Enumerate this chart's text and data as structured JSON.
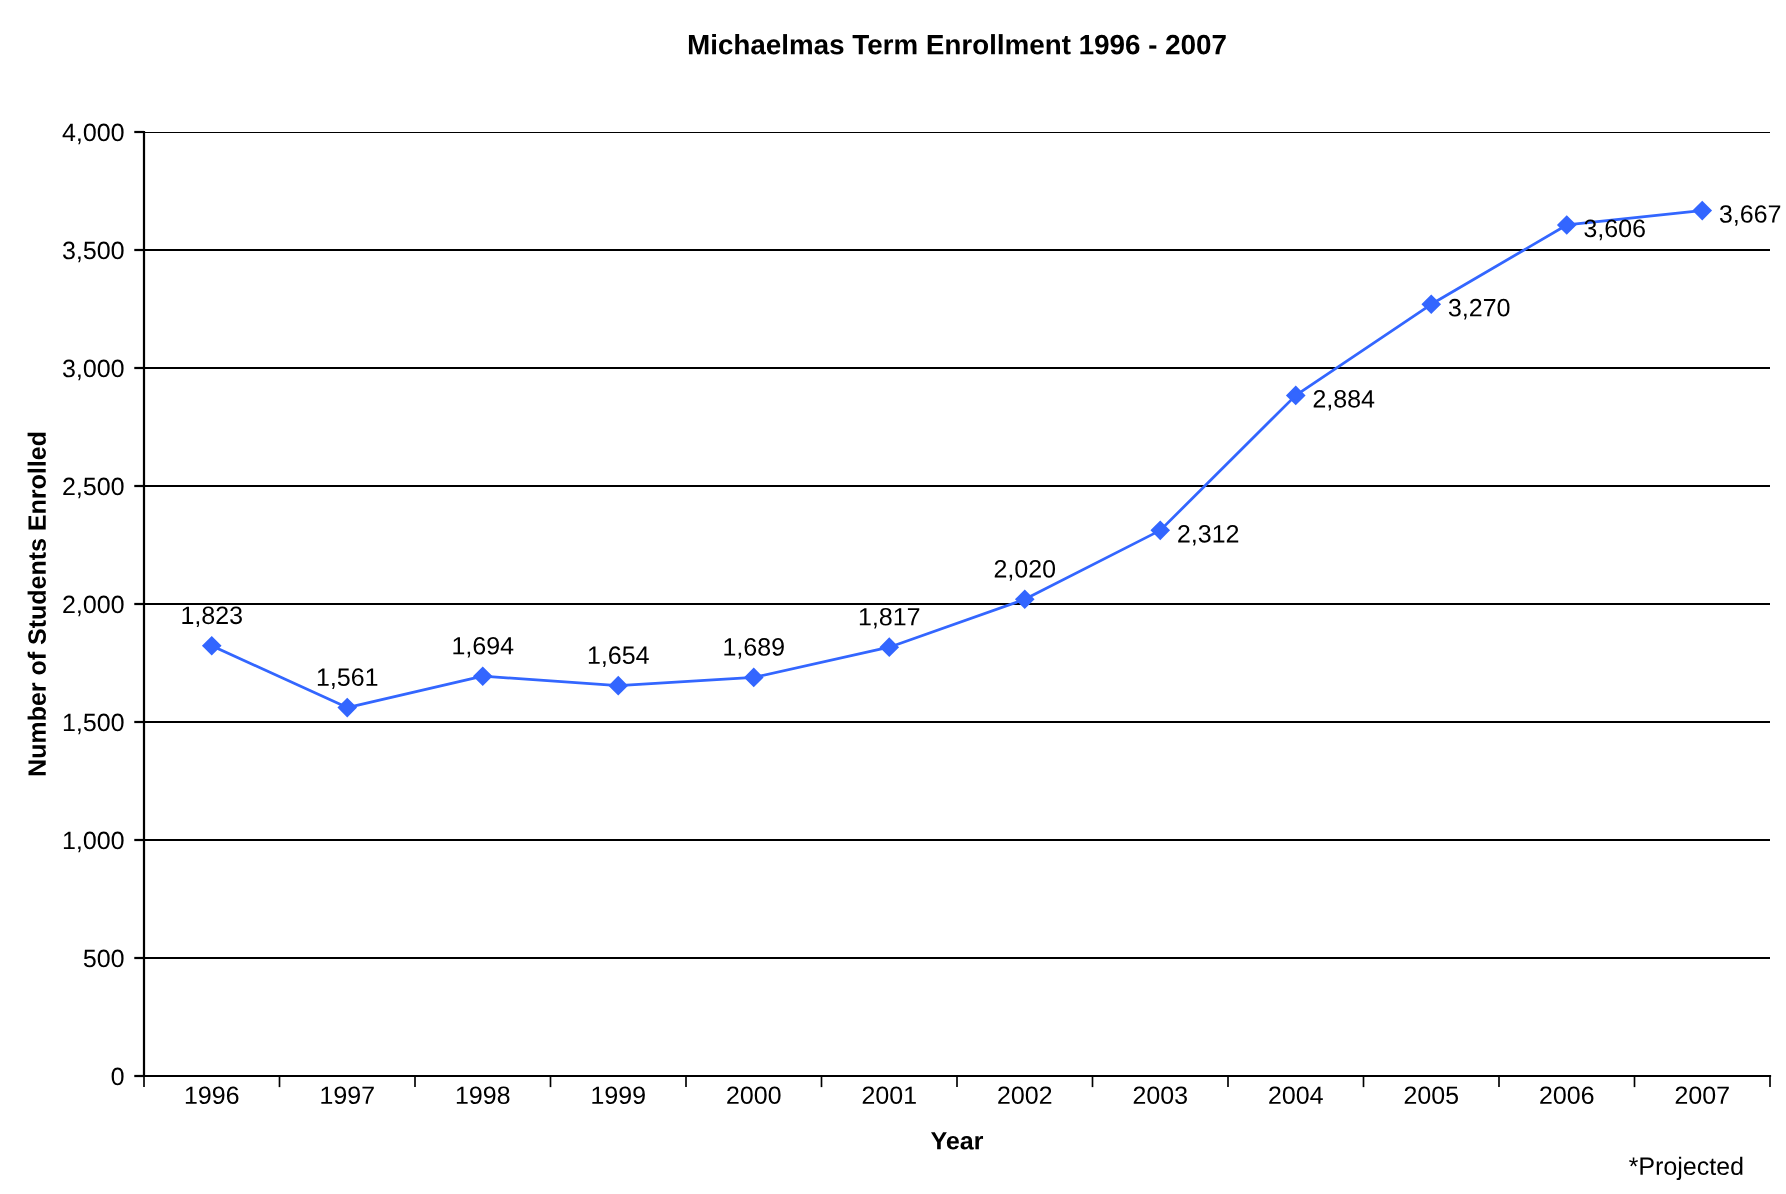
{
  "chart_data": {
    "type": "line",
    "title": "Michaelmas Term Enrollment 1996 - 2007",
    "xlabel": "Year",
    "ylabel": "Number of Students Enrolled",
    "categories": [
      "1996",
      "1997",
      "1998",
      "1999",
      "2000",
      "2001",
      "2002",
      "2003",
      "2004",
      "2005",
      "2006",
      "2007"
    ],
    "series": [
      {
        "color": "#3366ff",
        "values": [
          1823,
          1561,
          1694,
          1654,
          1689,
          1817,
          2020,
          2312,
          2884,
          3270,
          3606,
          3667
        ],
        "value_labels": [
          "1,823",
          "1,561",
          "1,694",
          "1,654",
          "1,689",
          "1,817",
          "2,020",
          "2,312",
          "2,884",
          "3,270",
          "3,606",
          "3,667"
        ]
      }
    ],
    "ylim": [
      0,
      4000
    ],
    "yticks": [
      0,
      {
        "value": 500,
        "label": "500"
      },
      {
        "value": 1000,
        "label": "1,000"
      },
      {
        "value": 1500,
        "label": "1,500"
      },
      {
        "value": 2000,
        "label": "2,000"
      },
      {
        "value": 2500,
        "label": "2,500"
      },
      {
        "value": 3000,
        "label": "3,000"
      },
      {
        "value": 3500,
        "label": "3,500"
      },
      {
        "value": 4000,
        "label": "4,000"
      }
    ],
    "grid": "y",
    "marker": "diamond",
    "line_style": "solid",
    "legend": false,
    "annotations": [
      "*Projected"
    ]
  }
}
